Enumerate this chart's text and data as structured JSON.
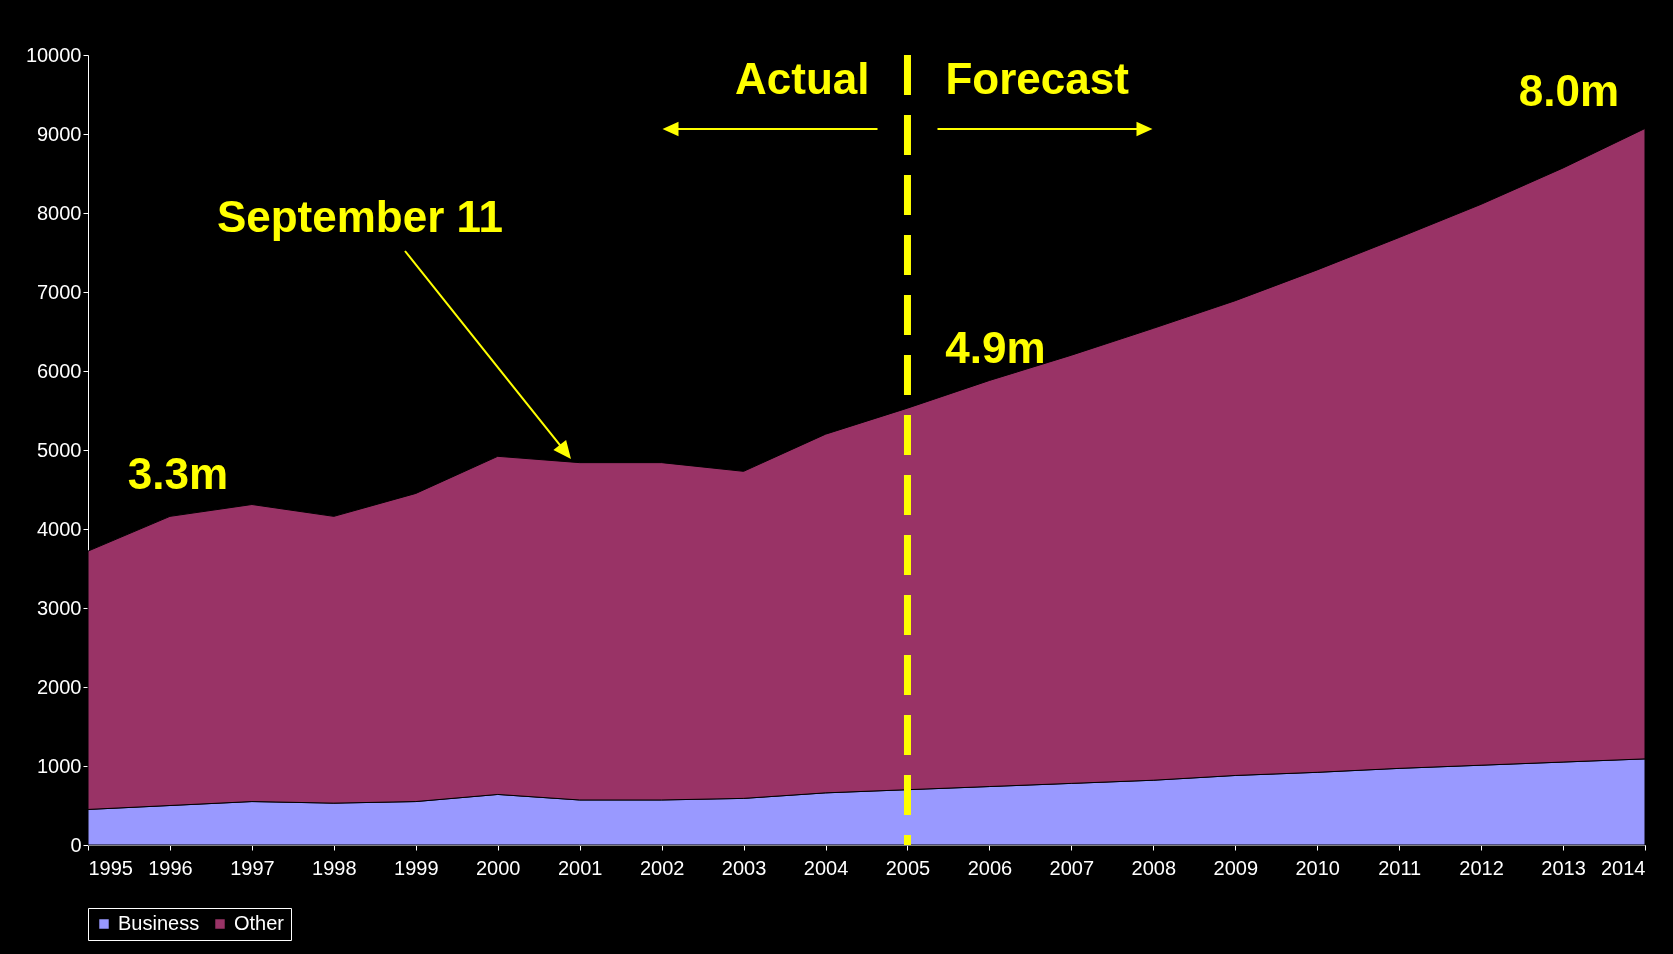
{
  "chart_data": {
    "type": "area",
    "stacked": true,
    "x": [
      1995,
      1996,
      1997,
      1998,
      1999,
      2000,
      2001,
      2002,
      2003,
      2004,
      2005,
      2006,
      2007,
      2008,
      2009,
      2010,
      2011,
      2012,
      2013,
      2014
    ],
    "series": [
      {
        "name": "Business",
        "color": "#9999ff",
        "values": [
          450,
          500,
          550,
          530,
          550,
          640,
          570,
          570,
          590,
          660,
          700,
          740,
          780,
          820,
          880,
          920,
          970,
          1010,
          1050,
          1090
        ]
      },
      {
        "name": "Other",
        "color": "#993366",
        "values": [
          3270,
          3660,
          3760,
          3630,
          3900,
          4280,
          4270,
          4270,
          4140,
          4540,
          4830,
          5140,
          5420,
          5720,
          6010,
          6360,
          6720,
          7100,
          7520,
          7980
        ]
      }
    ],
    "xlim": [
      1995,
      2014
    ],
    "xticks": [
      1995,
      1996,
      1997,
      1998,
      1999,
      2000,
      2001,
      2002,
      2003,
      2004,
      2005,
      2006,
      2007,
      2008,
      2009,
      2010,
      2011,
      2012,
      2013,
      2014
    ],
    "ylim": [
      0,
      10000
    ],
    "yticks": [
      0,
      1000,
      2000,
      3000,
      4000,
      5000,
      6000,
      7000,
      8000,
      9000,
      10000
    ],
    "legend": "bottom",
    "ref_lines": [
      {
        "axis": "x",
        "value": 2005,
        "color": "#ffff00",
        "line_style": "dashed"
      }
    ],
    "annotations": [
      "Actual",
      "Forecast",
      "September 11",
      {
        "text": "3.3m",
        "x": 1995,
        "y": 3720
      },
      {
        "text": "4.9m",
        "x": 2005,
        "y": 5530
      },
      {
        "text": "8.0m",
        "x": 2014,
        "y": 9070
      }
    ]
  }
}
